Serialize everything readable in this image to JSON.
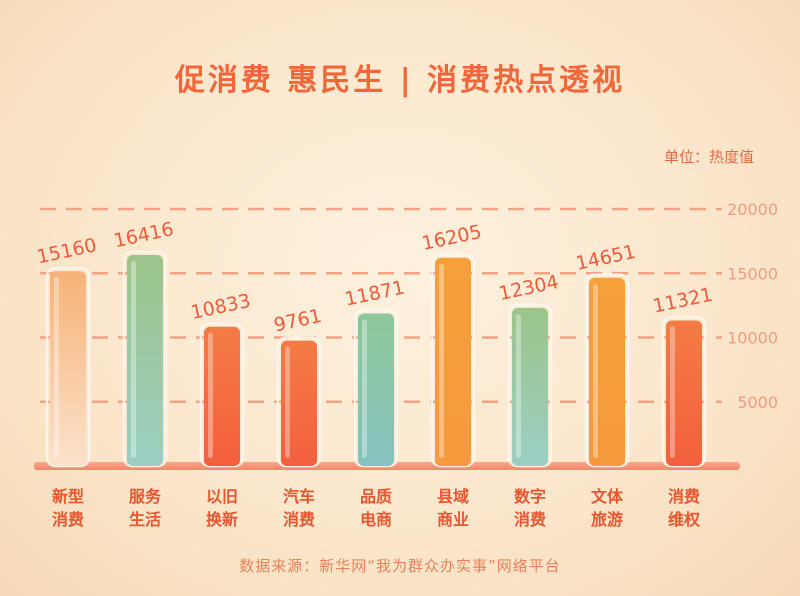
{
  "title": "促消费 惠民生 | 消费热点透视",
  "unit_label": "单位：热度值",
  "source_label": "数据来源：新华网“我为群众办实事”网络平台",
  "chart_data": {
    "type": "bar",
    "categories": [
      [
        "新型",
        "消费"
      ],
      [
        "服务",
        "生活"
      ],
      [
        "以旧",
        "换新"
      ],
      [
        "汽车",
        "消费"
      ],
      [
        "品质",
        "电商"
      ],
      [
        "县域",
        "商业"
      ],
      [
        "数字",
        "消费"
      ],
      [
        "文体",
        "旅游"
      ],
      [
        "消费",
        "维权"
      ]
    ],
    "values": [
      15160,
      16416,
      10833,
      9761,
      11871,
      16205,
      12304,
      14651,
      11321
    ],
    "yticks": [
      5000,
      10000,
      15000,
      20000
    ],
    "ylim": [
      0,
      20000
    ],
    "grid": true,
    "colors": {
      "orange": "#f39a34",
      "coral": "#f36c45",
      "peach": "#f4b27c",
      "green": "#a5c98f",
      "teal": "#8fc6b8",
      "accent": "#f2673a"
    },
    "bar_styles": [
      "peach-fade",
      "green-fade",
      "coral",
      "coral",
      "teal",
      "orange",
      "green-fade",
      "orange",
      "coral"
    ]
  }
}
